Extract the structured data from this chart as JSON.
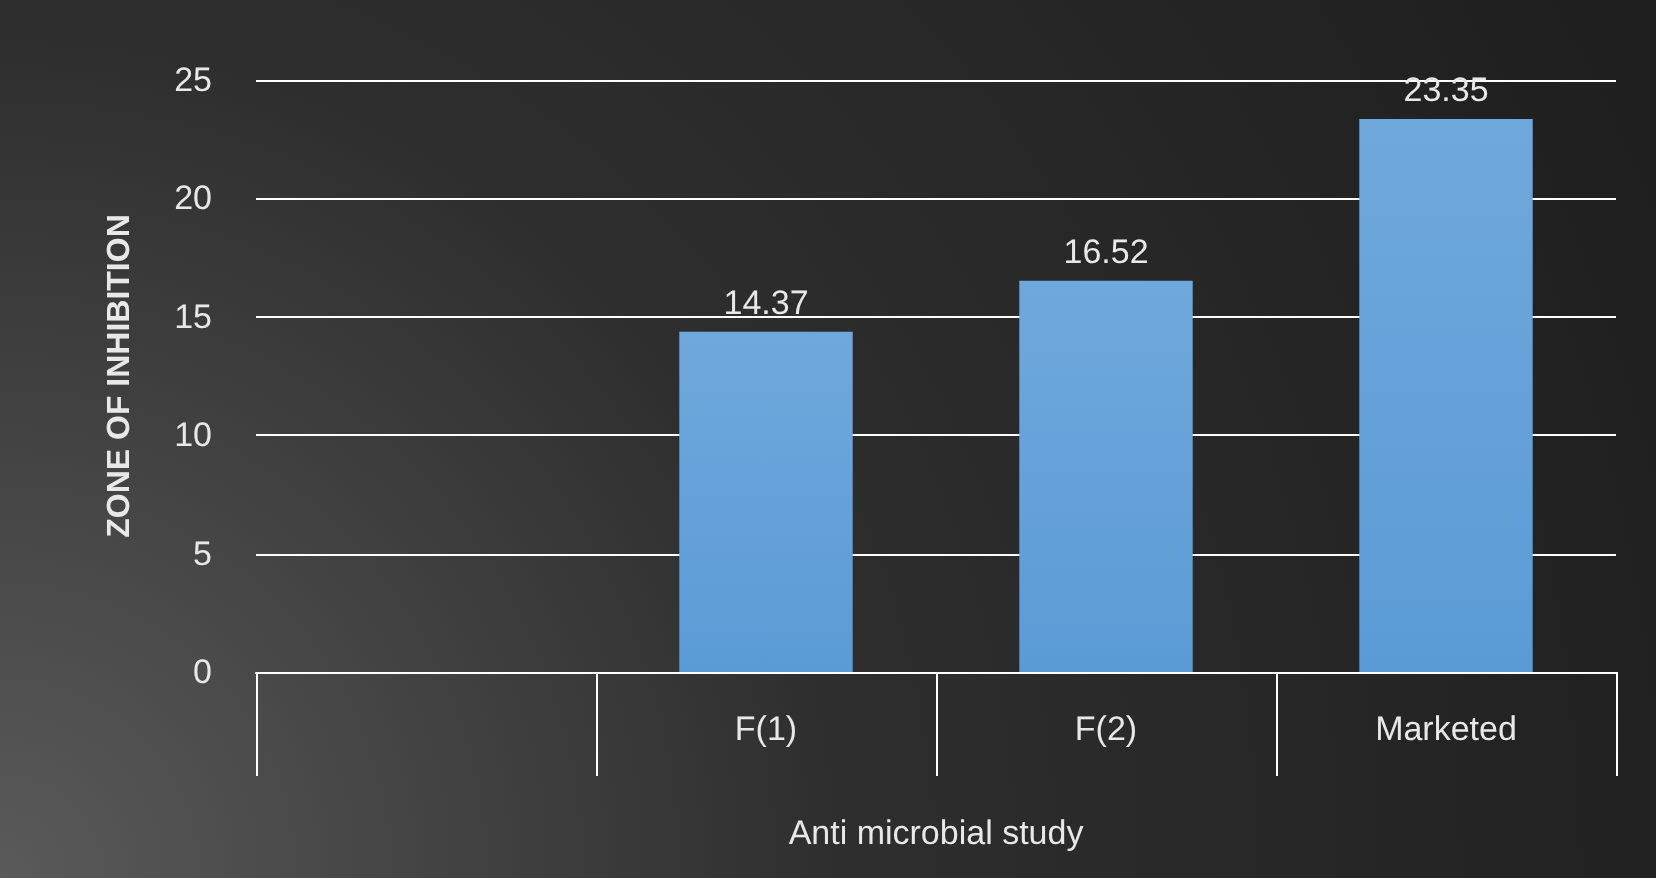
{
  "chart_data": {
    "type": "bar",
    "ylabel": "ZONE OF INHIBITION",
    "xlabel": "Anti microbial study",
    "categories": [
      null,
      "F(1)",
      "F(2)",
      "Marketed"
    ],
    "values": [
      null,
      14.37,
      16.52,
      23.35
    ],
    "color": "#5b9bd5",
    "ylim": [
      0,
      25
    ],
    "yticks": [
      0,
      5,
      10,
      15,
      20,
      25
    ],
    "grid": "y",
    "data_labels": true
  }
}
